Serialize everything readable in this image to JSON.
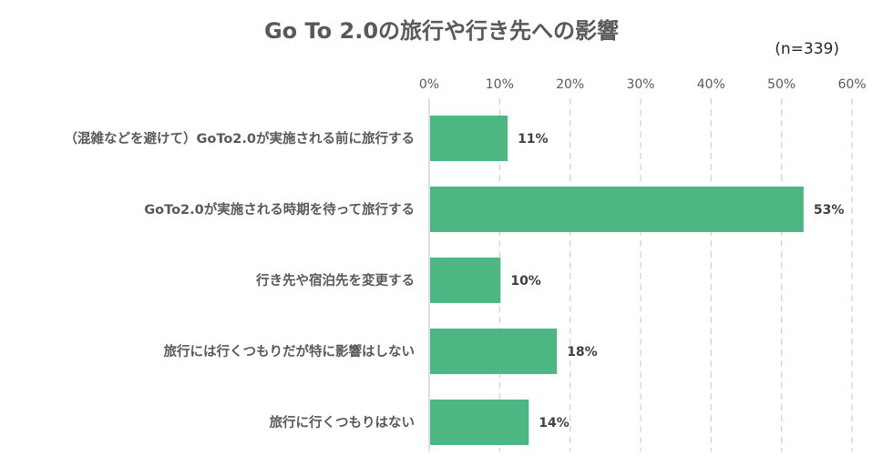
{
  "chart_data": {
    "type": "bar",
    "orientation": "horizontal",
    "title": "Go To 2.0の旅行や行き先への影響",
    "note": "(n=339)",
    "categories": [
      "（混雑などを避けて）GoTo2.0が実施される前に旅行する",
      "GoTo2.0が実施される時期を待って旅行する",
      "行き先や宿泊先を変更する",
      "旅行には行くつもりだが特に影響はしない",
      "旅行に行くつもりはない"
    ],
    "values": [
      11,
      53,
      10,
      18,
      14
    ],
    "value_labels": [
      "11%",
      "53%",
      "10%",
      "18%",
      "14%"
    ],
    "xlim": [
      0,
      60
    ],
    "x_ticks": [
      "0%",
      "10%",
      "20%",
      "30%",
      "40%",
      "50%",
      "60%"
    ],
    "grid": "vertical dashed",
    "bar_color": "#4cb783",
    "grid_color": "#d0d0d0"
  }
}
